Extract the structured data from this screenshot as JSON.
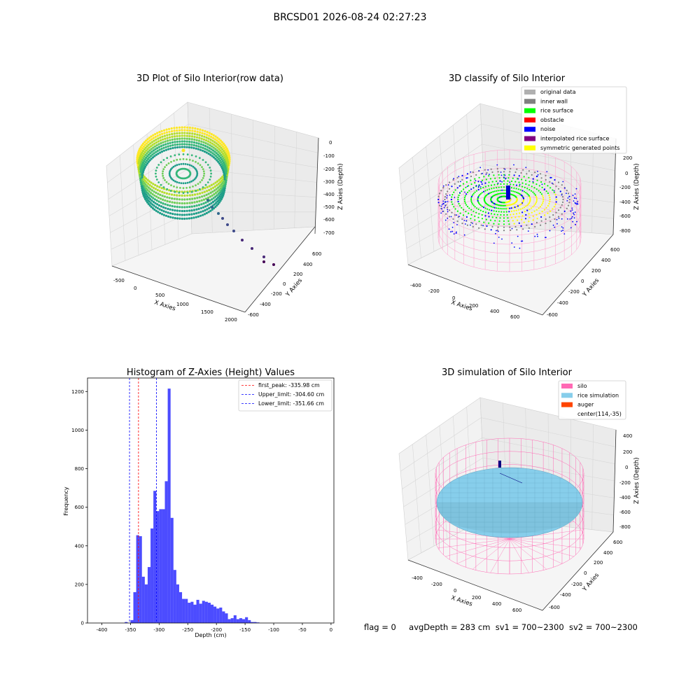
{
  "suptitle": "BRCSD01 2026-08-24 02:27:23",
  "status": {
    "flag": "flag = 0",
    "avg": "avgDepth = 283 cm",
    "sv1": "sv1 = 700~2300",
    "sv2": "sv2 = 700~2300"
  },
  "colors": {
    "accent_blue": "#0000ff",
    "red": "#ff0000",
    "pink_silo": "#ff69b4",
    "rice": "#87ceeb",
    "auger": "#ff4500"
  },
  "chart_data": [
    {
      "type": "scatter",
      "title": "3D Plot of Silo Interior(row data)",
      "xlabel": "X Axies",
      "ylabel": "Y Axies",
      "zlabel": "Z Axies (Depth)",
      "xticks": [
        "-500",
        "0",
        "500",
        "1000",
        "1500",
        "2000"
      ],
      "yticks": [
        "600",
        "400",
        "200",
        "0",
        "-200",
        "-400",
        "-600"
      ],
      "zticks": [
        "0",
        "-100",
        "-200",
        "-300",
        "-400",
        "-500",
        "-600",
        "-700"
      ],
      "grid": true,
      "colormap": "viridis"
    },
    {
      "type": "scatter",
      "title": "3D classify of Silo Interior",
      "xlabel": "X Axies",
      "ylabel": "Y Axies",
      "zlabel": "Z Axies (Depth)",
      "xticks": [
        "-400",
        "-200",
        "0",
        "200",
        "400",
        "600"
      ],
      "yticks": [
        "600",
        "400",
        "200",
        "0",
        "-200",
        "-400",
        "-600"
      ],
      "zticks": [
        "200",
        "0",
        "-200",
        "-400",
        "-600",
        "-800"
      ],
      "legend_position": "top-right",
      "series": [
        {
          "name": "original data",
          "color": "#b0b0b0"
        },
        {
          "name": "inner wall",
          "color": "#808080"
        },
        {
          "name": "rice surface",
          "color": "#00ff00"
        },
        {
          "name": "obstacle",
          "color": "#ff0000"
        },
        {
          "name": "noise",
          "color": "#0000ff"
        },
        {
          "name": "interpolated rice surface",
          "color": "#800080"
        },
        {
          "name": "symmetric generated points",
          "color": "#ffff00"
        }
      ]
    },
    {
      "type": "bar",
      "title": "Histogram of Z-Axies (Height) Values",
      "xlabel": "Depth (cm)",
      "ylabel": "Frequency",
      "xlim": [
        -425,
        5
      ],
      "ylim": [
        0,
        1270
      ],
      "xticks": [
        -400,
        -350,
        -300,
        -250,
        -200,
        -150,
        -100,
        -50,
        0
      ],
      "yticks": [
        0,
        200,
        400,
        600,
        800,
        1000,
        1200
      ],
      "bin_width": 5,
      "bin_starts": [
        -360,
        -355,
        -350,
        -345,
        -340,
        -335,
        -330,
        -325,
        -320,
        -315,
        -310,
        -305,
        -300,
        -295,
        -290,
        -285,
        -280,
        -275,
        -270,
        -265,
        -260,
        -255,
        -250,
        -245,
        -240,
        -235,
        -230,
        -225,
        -220,
        -215,
        -210,
        -205,
        -200,
        -195,
        -190,
        -185,
        -180,
        -175,
        -170,
        -165,
        -160,
        -155,
        -150,
        -145,
        -140,
        -135,
        -130,
        -125,
        -120,
        -115,
        -110,
        -105,
        -100,
        -95,
        -90,
        -85,
        -80,
        -75,
        -70,
        -65,
        -60,
        -55,
        -50,
        -45,
        -40,
        -35,
        -30,
        -25,
        -20,
        -15
      ],
      "values": [
        5,
        0,
        15,
        160,
        455,
        450,
        240,
        200,
        290,
        490,
        685,
        580,
        590,
        590,
        735,
        1215,
        545,
        275,
        200,
        160,
        125,
        125,
        105,
        110,
        95,
        120,
        100,
        115,
        110,
        105,
        95,
        85,
        75,
        80,
        60,
        50,
        20,
        25,
        40,
        20,
        25,
        20,
        30,
        15,
        5,
        5,
        3,
        0,
        0,
        0,
        0,
        0,
        0,
        0,
        0,
        0,
        0,
        0,
        0,
        0,
        0,
        0,
        0,
        0,
        0,
        0,
        0,
        0,
        0,
        0
      ],
      "bar_color": "#0000ff",
      "reference_lines": [
        {
          "name": "first_peak: -335.98 cm",
          "x": -335.98,
          "color": "#ff0000"
        },
        {
          "name": "Upper_limit: -304.60 cm",
          "x": -304.6,
          "color": "#0000ff"
        },
        {
          "name": "Lower_limit: -351.66 cm",
          "x": -351.66,
          "color": "#0000ff"
        }
      ],
      "legend_position": "top-right"
    },
    {
      "type": "scatter",
      "title": "3D simulation of Silo Interior",
      "xlabel": "X Axies",
      "ylabel": "Y Axies",
      "zlabel": "Z Axies (Depth)",
      "xticks": [
        "-400",
        "-200",
        "0",
        "200",
        "400",
        "600"
      ],
      "yticks": [
        "600",
        "400",
        "200",
        "0",
        "-200",
        "-400",
        "-600"
      ],
      "zticks": [
        "400",
        "200",
        "0",
        "-200",
        "-400",
        "-600",
        "-800"
      ],
      "legend_position": "top-right",
      "series": [
        {
          "name": "silo",
          "color": "#ff69b4"
        },
        {
          "name": "rice simulation",
          "color": "#87ceeb"
        },
        {
          "name": "auger",
          "color": "#ff4500"
        },
        {
          "name": "center(114,-35)",
          "color": "#ffffff"
        }
      ]
    }
  ]
}
